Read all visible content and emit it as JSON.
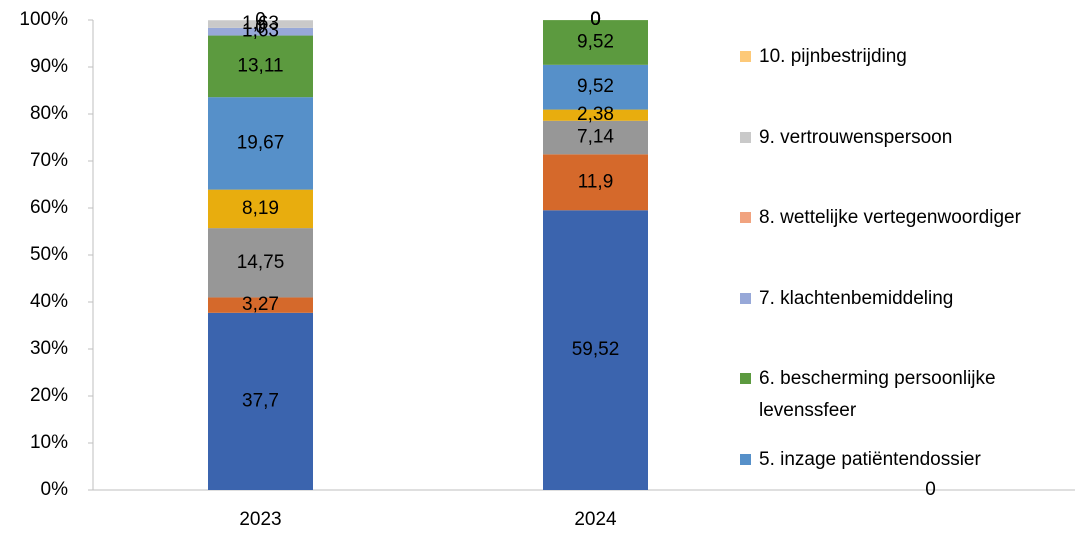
{
  "chart_data": {
    "type": "stacked_bar",
    "categories": [
      "2023",
      "2024",
      null
    ],
    "ylim": [
      0,
      100
    ],
    "yticks": [
      {
        "value": 0,
        "label": "0%"
      },
      {
        "value": 10,
        "label": "10%"
      },
      {
        "value": 20,
        "label": "20%"
      },
      {
        "value": 30,
        "label": "30%"
      },
      {
        "value": 40,
        "label": "40%"
      },
      {
        "value": 50,
        "label": "50%"
      },
      {
        "value": 60,
        "label": "60%"
      },
      {
        "value": 70,
        "label": "70%"
      },
      {
        "value": 80,
        "label": "80%"
      },
      {
        "value": 90,
        "label": "90%"
      },
      {
        "value": 100,
        "label": "100%"
      }
    ],
    "grid": false,
    "legend": "right",
    "series": [
      {
        "color": "#3b64ae",
        "values": [
          37.7,
          59.52,
          0
        ],
        "value_labels": [
          "37,7",
          "59,52",
          "0"
        ]
      },
      {
        "color": "#d5692b",
        "values": [
          3.27,
          11.9,
          null
        ],
        "value_labels": [
          "3,27",
          "11,9",
          null
        ]
      },
      {
        "color": "#979797",
        "values": [
          14.75,
          7.14,
          null
        ],
        "value_labels": [
          "14,75",
          "7,14",
          null
        ]
      },
      {
        "color": "#e8ad0e",
        "values": [
          8.19,
          2.38,
          null
        ],
        "value_labels": [
          "8,19",
          "2,38",
          null
        ]
      },
      {
        "name": "5. inzage patiëntendossier",
        "color": "#5690c9",
        "values": [
          19.67,
          9.52,
          null
        ],
        "value_labels": [
          "19,67",
          "9,52",
          null
        ]
      },
      {
        "name": "6. bescherming persoonlijke levenssfeer",
        "color": "#5c9a3f",
        "values": [
          13.11,
          9.52,
          null
        ],
        "value_labels": [
          "13,11",
          "9,52",
          null
        ]
      },
      {
        "name": "7. klachtenbemiddeling",
        "color": "#97a8d8",
        "values": [
          1.63,
          0,
          null
        ],
        "value_labels": [
          "1,63",
          "0",
          null
        ]
      },
      {
        "name": "8. wettelijke vertegenwoordiger",
        "color": "#f1a37f",
        "values": [
          0,
          0,
          null
        ],
        "value_labels": [
          "0",
          "0",
          null
        ]
      },
      {
        "name": "9. vertrouwenspersoon",
        "color": "#c9c9c9",
        "values": [
          1.63,
          0,
          null
        ],
        "value_labels": [
          "1,63",
          "0",
          null
        ]
      },
      {
        "name": "10. pijnbestrijding",
        "color": "#fdc978",
        "values": [
          0,
          0,
          null
        ],
        "value_labels": [
          "0",
          "0",
          null
        ]
      }
    ]
  }
}
